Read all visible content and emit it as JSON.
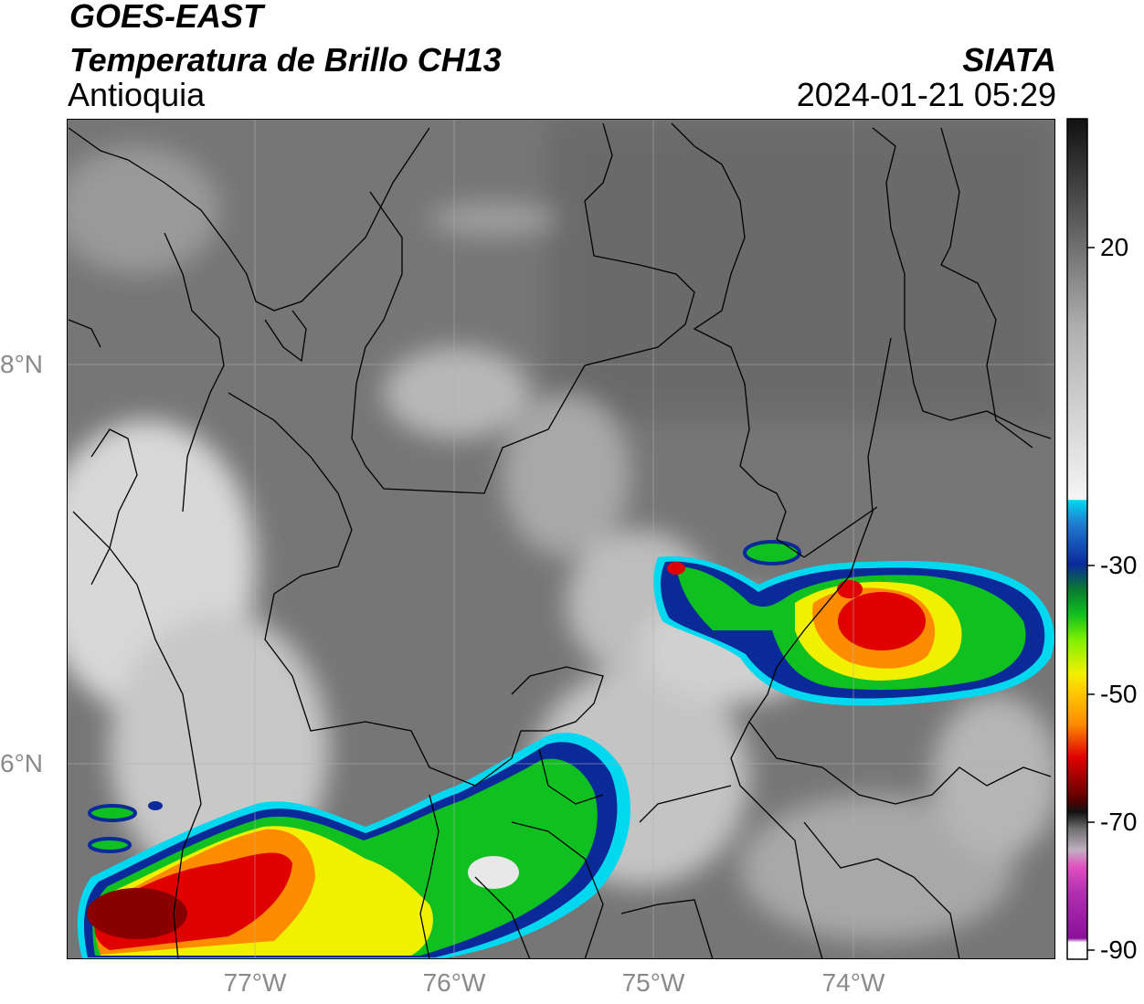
{
  "header": {
    "satellite": "GOES-EAST",
    "product": "Temperatura de Brillo CH13",
    "region": "Antioquia",
    "agency": "SIATA",
    "datetime": "2024-01-21 05:29"
  },
  "axes": {
    "lat_labels": [
      {
        "label": "8°N",
        "value": 8
      },
      {
        "label": "6°N",
        "value": 6
      }
    ],
    "lon_labels": [
      {
        "label": "77°W",
        "value": -77
      },
      {
        "label": "76°W",
        "value": -76
      },
      {
        "label": "75°W",
        "value": -75
      },
      {
        "label": "74°W",
        "value": -74
      }
    ],
    "extent": {
      "lon_min": -77.93,
      "lon_max": -72.97,
      "lat_min": 5.06,
      "lat_max": 9.23
    }
  },
  "colorbar": {
    "ticks": [
      "20",
      "-30",
      "-50",
      "-70",
      "-90"
    ],
    "tick_values": [
      20,
      -30,
      -50,
      -70,
      -90
    ],
    "range": [
      -91,
      38
    ],
    "colors": {
      "warm_black": "#111111",
      "warm_gray": "#7a7a7a",
      "cold_white": "#f5f5f5",
      "cyan": "#00d8f0",
      "blue": "#0a2a9a",
      "green": "#10c020",
      "yellow": "#f0f000",
      "orange": "#ff8c00",
      "red": "#e00000",
      "dark_red": "#5a0000",
      "magenta": "#e050c0",
      "purple": "#8a109a"
    }
  },
  "storms": [
    {
      "name": "southwest convective band",
      "approx_lon": -76.8,
      "approx_lat": 5.4,
      "min_temp_c": -68
    },
    {
      "name": "eastern convective cell",
      "approx_lon": -73.8,
      "approx_lat": 6.7,
      "min_temp_c": -62
    }
  ]
}
